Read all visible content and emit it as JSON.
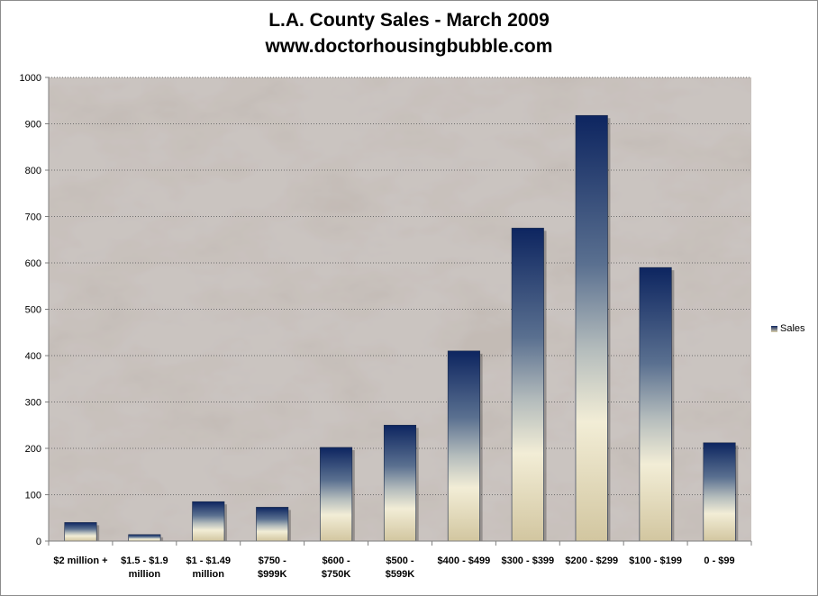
{
  "chart_data": {
    "type": "bar",
    "title": "L.A. County Sales - March 2009",
    "subtitle": "www.doctorhousingbubble.com",
    "xlabel": "",
    "ylabel": "",
    "ylim": [
      0,
      1000
    ],
    "yticks": [
      0,
      100,
      200,
      300,
      400,
      500,
      600,
      700,
      800,
      900,
      1000
    ],
    "grid": true,
    "legend_placement": "right",
    "categories": [
      [
        "$2 million +"
      ],
      [
        "$1.5 - $1.9",
        "million"
      ],
      [
        "$1 - $1.49",
        "million"
      ],
      [
        "$750 -",
        "$999K"
      ],
      [
        "$600 -",
        "$750K"
      ],
      [
        "$500 -",
        "$599K"
      ],
      [
        "$400 - $499"
      ],
      [
        "$300 - $399"
      ],
      [
        "$200 - $299"
      ],
      [
        "$100 - $199"
      ],
      [
        "0 - $99"
      ]
    ],
    "series": [
      {
        "name": "Sales",
        "values": [
          40,
          14,
          85,
          73,
          202,
          250,
          410,
          675,
          918,
          590,
          212
        ]
      }
    ],
    "colors": {
      "bar_top": "#0d2560",
      "bar_mid": "#8a9aa8",
      "bar_light": "#f2edd6",
      "bar_bottom": "#d2c6a0",
      "plot_bg": "#b8b0aa"
    }
  }
}
